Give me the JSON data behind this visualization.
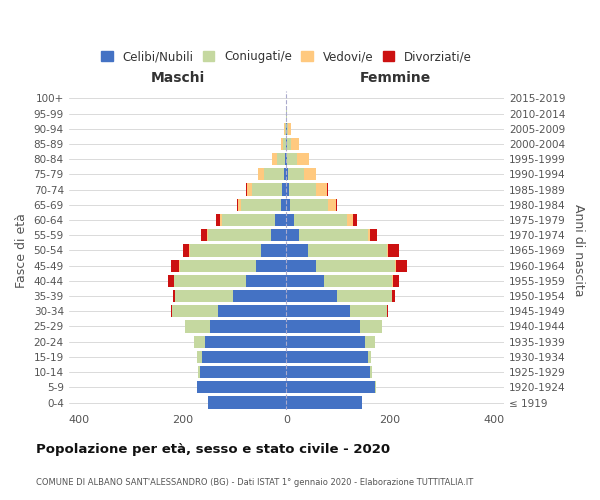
{
  "age_groups": [
    "100+",
    "95-99",
    "90-94",
    "85-89",
    "80-84",
    "75-79",
    "70-74",
    "65-69",
    "60-64",
    "55-59",
    "50-54",
    "45-49",
    "40-44",
    "35-39",
    "30-34",
    "25-29",
    "20-24",
    "15-19",
    "10-14",
    "5-9",
    "0-4"
  ],
  "birth_years": [
    "≤ 1919",
    "1920-1924",
    "1925-1929",
    "1930-1934",
    "1935-1939",
    "1940-1944",
    "1945-1949",
    "1950-1954",
    "1955-1959",
    "1960-1964",
    "1965-1969",
    "1970-1974",
    "1975-1979",
    "1980-1984",
    "1985-1989",
    "1990-1994",
    "1995-1999",
    "2000-2004",
    "2005-2009",
    "2010-2014",
    "2015-2019"
  ],
  "colors": {
    "celibi": "#4472c4",
    "coniugati": "#c5d8a0",
    "vedovi": "#ffc97f",
    "divorziati": "#cc1111"
  },
  "males_celibi": [
    0,
    0,
    1,
    1,
    2,
    5,
    8,
    10,
    22,
    30,
    48,
    58,
    78,
    102,
    132,
    147,
    157,
    162,
    167,
    172,
    152
  ],
  "males_coniugati": [
    0,
    0,
    2,
    6,
    16,
    38,
    58,
    78,
    102,
    122,
    138,
    148,
    138,
    112,
    88,
    48,
    22,
    10,
    3,
    1,
    0
  ],
  "males_vedovi": [
    0,
    0,
    1,
    3,
    9,
    11,
    9,
    6,
    3,
    2,
    1,
    1,
    0,
    0,
    0,
    0,
    0,
    0,
    0,
    0,
    0
  ],
  "males_divorziati": [
    0,
    0,
    0,
    0,
    0,
    1,
    2,
    2,
    9,
    10,
    12,
    16,
    12,
    5,
    2,
    1,
    0,
    0,
    0,
    0,
    0
  ],
  "females_celibi": [
    0,
    0,
    1,
    1,
    2,
    3,
    5,
    8,
    15,
    25,
    42,
    58,
    72,
    97,
    122,
    142,
    152,
    157,
    162,
    172,
    147
  ],
  "females_coniugati": [
    0,
    1,
    3,
    8,
    19,
    32,
    52,
    72,
    102,
    132,
    152,
    152,
    132,
    107,
    72,
    42,
    20,
    7,
    3,
    1,
    0
  ],
  "females_vedovi": [
    0,
    1,
    6,
    16,
    22,
    22,
    22,
    16,
    11,
    5,
    2,
    1,
    1,
    0,
    0,
    0,
    0,
    0,
    0,
    0,
    0
  ],
  "females_divorziati": [
    0,
    0,
    0,
    0,
    0,
    1,
    2,
    2,
    9,
    13,
    21,
    21,
    12,
    5,
    2,
    0,
    0,
    0,
    0,
    0,
    0
  ],
  "xlim": 420,
  "title": "Popolazione per età, sesso e stato civile - 2020",
  "subtitle": "COMUNE DI ALBANO SANT'ALESSANDRO (BG) - Dati ISTAT 1° gennaio 2020 - Elaborazione TUTTITALIA.IT",
  "xlabel_left": "Maschi",
  "xlabel_right": "Femmine",
  "ylabel": "Fasce di età",
  "ylabel_right": "Anni di nascita",
  "legend_labels": [
    "Celibi/Nubili",
    "Coniugati/e",
    "Vedovi/e",
    "Divorziati/e"
  ],
  "bg_color": "#ffffff"
}
